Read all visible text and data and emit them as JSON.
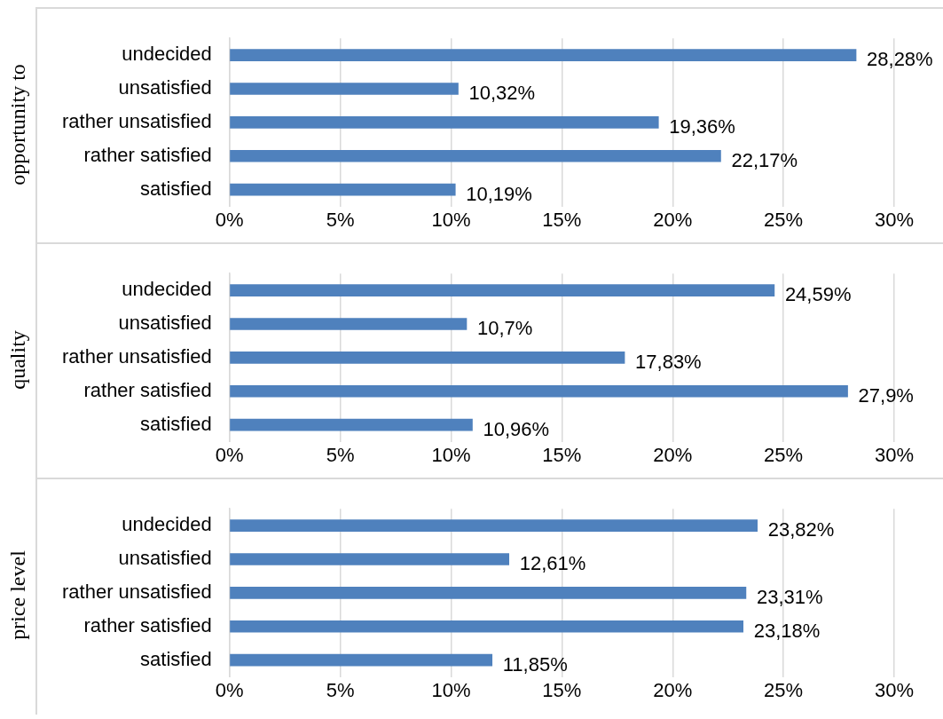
{
  "chart_data": [
    {
      "type": "bar",
      "orientation": "horizontal",
      "ylabel": "opportunity to",
      "categories": [
        "undecided",
        "unsatisfied",
        "rather unsatisfied",
        "rather satisfied",
        "satisfied"
      ],
      "values": [
        28.28,
        10.32,
        19.36,
        22.17,
        10.19
      ],
      "value_labels": [
        "28,28%",
        "10,32%",
        "19,36%",
        "22,17%",
        "10,19%"
      ],
      "color": "#4f81bd",
      "xlim": [
        0,
        30
      ],
      "xticks": [
        {
          "value": 0,
          "label": "0%"
        },
        {
          "value": 5,
          "label": "5%"
        },
        {
          "value": 10,
          "label": "10%"
        },
        {
          "value": 15,
          "label": "15%"
        },
        {
          "value": 20,
          "label": "20%"
        },
        {
          "value": 25,
          "label": "25%"
        },
        {
          "value": 30,
          "label": "30%"
        }
      ],
      "grid": "x",
      "legend": false
    },
    {
      "type": "bar",
      "orientation": "horizontal",
      "ylabel": "quality",
      "categories": [
        "undecided",
        "unsatisfied",
        "rather unsatisfied",
        "rather satisfied",
        "satisfied"
      ],
      "values": [
        24.59,
        10.7,
        17.83,
        27.9,
        10.96
      ],
      "value_labels": [
        "24,59%",
        "10,7%",
        "17,83%",
        "27,9%",
        "10,96%"
      ],
      "color": "#4f81bd",
      "xlim": [
        0,
        30
      ],
      "xticks": [
        {
          "value": 0,
          "label": "0%"
        },
        {
          "value": 5,
          "label": "5%"
        },
        {
          "value": 10,
          "label": "10%"
        },
        {
          "value": 15,
          "label": "15%"
        },
        {
          "value": 20,
          "label": "20%"
        },
        {
          "value": 25,
          "label": "25%"
        },
        {
          "value": 30,
          "label": "30%"
        }
      ],
      "grid": "x",
      "legend": false
    },
    {
      "type": "bar",
      "orientation": "horizontal",
      "ylabel": "price level",
      "categories": [
        "undecided",
        "unsatisfied",
        "rather unsatisfied",
        "rather satisfied",
        "satisfied"
      ],
      "values": [
        23.82,
        12.61,
        23.31,
        23.18,
        11.85
      ],
      "value_labels": [
        "23,82%",
        "12,61%",
        "23,31%",
        "23,18%",
        "11,85%"
      ],
      "color": "#4f81bd",
      "xlim": [
        0,
        30
      ],
      "xticks": [
        {
          "value": 0,
          "label": "0%"
        },
        {
          "value": 5,
          "label": "5%"
        },
        {
          "value": 10,
          "label": "10%"
        },
        {
          "value": 15,
          "label": "15%"
        },
        {
          "value": 20,
          "label": "20%"
        },
        {
          "value": 25,
          "label": "25%"
        },
        {
          "value": 30,
          "label": "30%"
        }
      ],
      "grid": "x",
      "legend": false
    }
  ]
}
